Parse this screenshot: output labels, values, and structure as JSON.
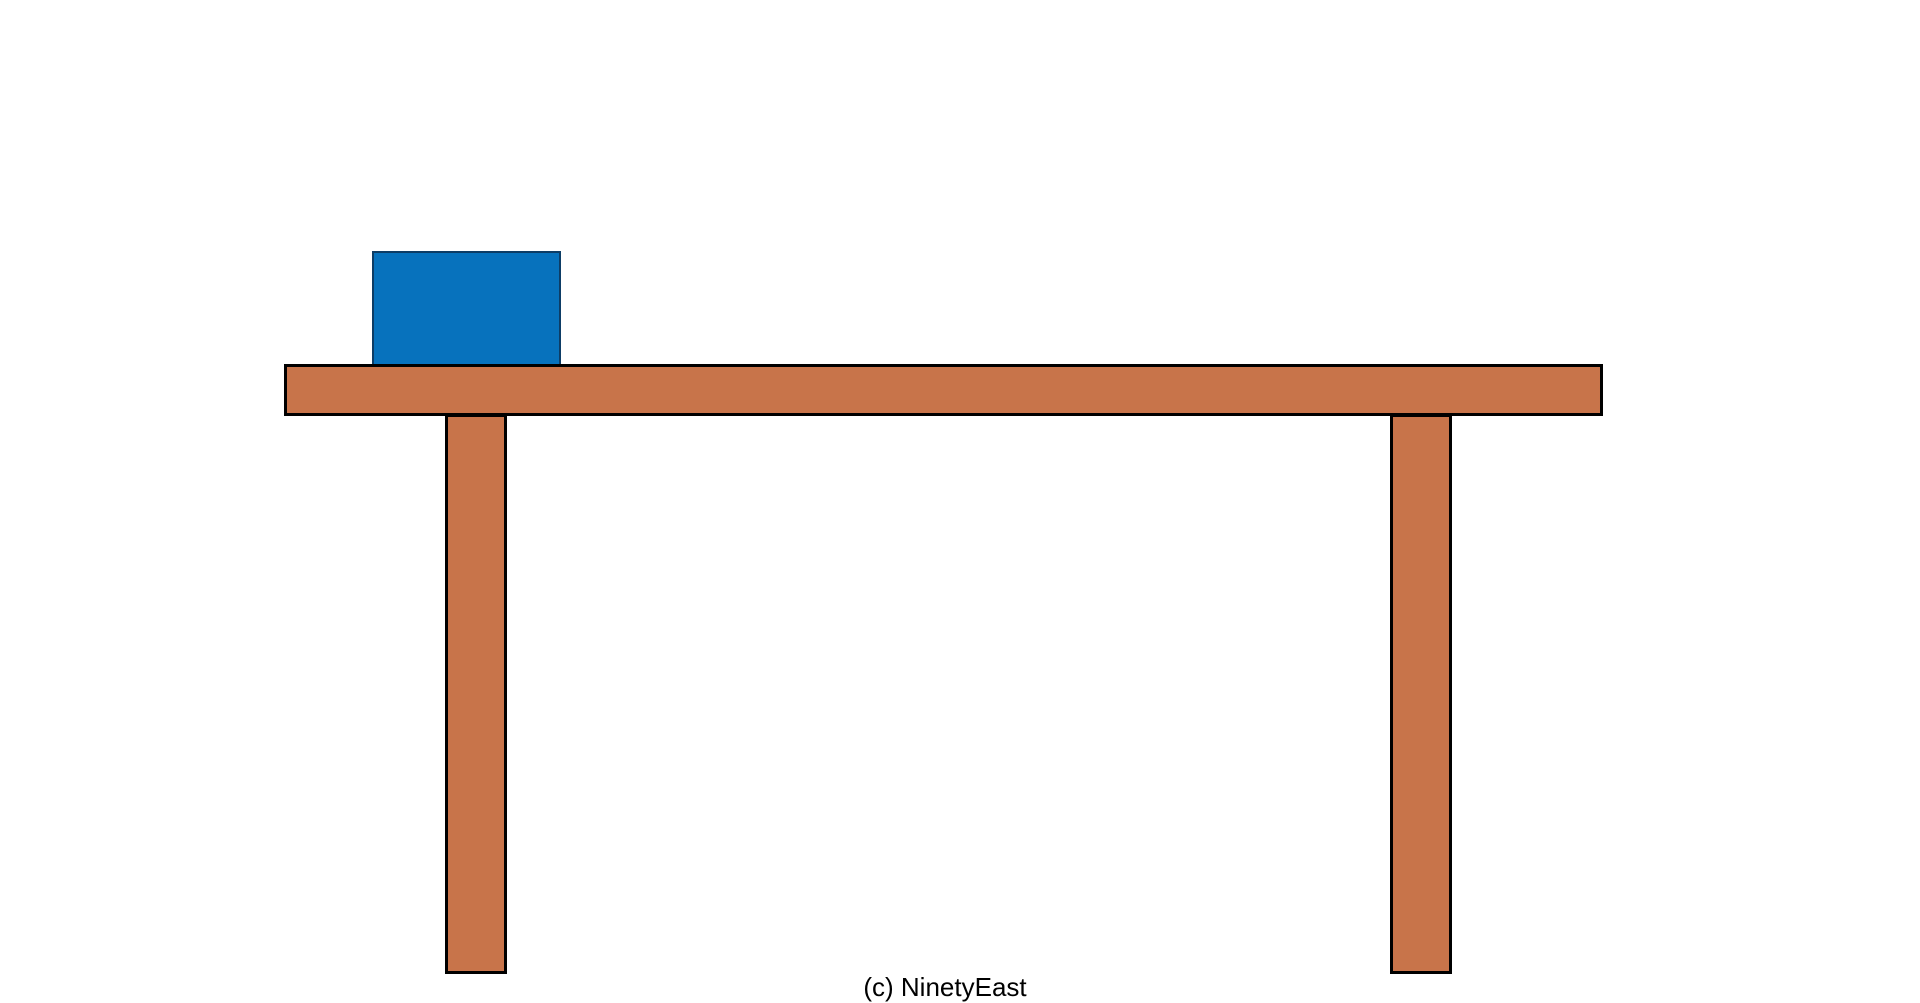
{
  "colors": {
    "background": "#ffffff",
    "block": "#0772bd",
    "wood": "#c8744a",
    "outline": "#000000"
  },
  "diagram": {
    "objects": [
      "block",
      "tabletop",
      "leg-left",
      "leg-right"
    ]
  },
  "footer": {
    "copyright": "(c) NinetyEast"
  }
}
